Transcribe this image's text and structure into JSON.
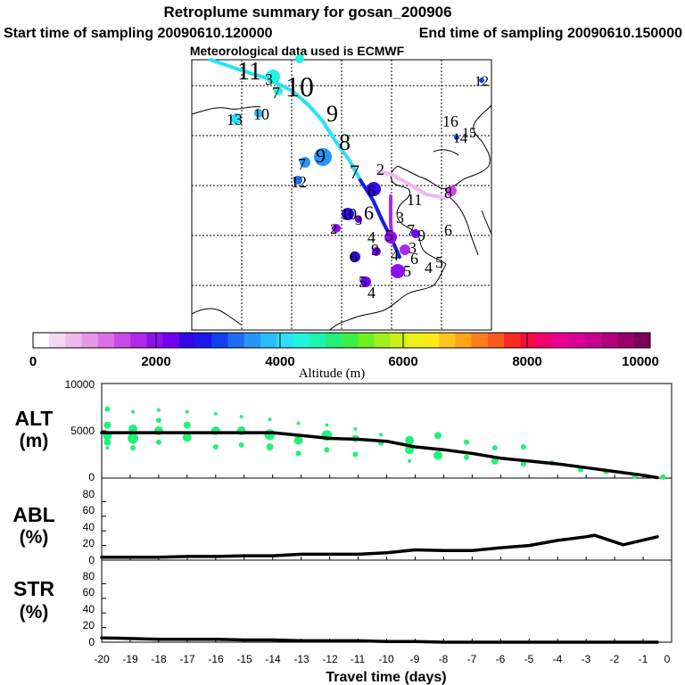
{
  "header": {
    "title": "Retroplume summary for gosan_200906",
    "start_time": "Start time of sampling 20090610.120000",
    "end_time": "End time of sampling 20090610.150000",
    "met_data": "Meteorological data used is ECMWF"
  },
  "colorbar": {
    "label": "Altitude (m)",
    "ticks": [
      "0",
      "2000",
      "4000",
      "6000",
      "8000",
      "10000"
    ],
    "colors": [
      "#ffffff",
      "#f5d6f5",
      "#f0b8f0",
      "#e896ea",
      "#dc6fe6",
      "#c84be8",
      "#ae2aea",
      "#8f10ec",
      "#7000f0",
      "#3008e8",
      "#1a18ec",
      "#1040ee",
      "#1f6cf2",
      "#2596f6",
      "#28bcf8",
      "#2ae0f8",
      "#20f4e0",
      "#1cf4b0",
      "#22f07a",
      "#3cf044",
      "#6cf020",
      "#9ef018",
      "#ccf018",
      "#eef018",
      "#fbe81a",
      "#fbc61c",
      "#fba41c",
      "#fb801c",
      "#fb5a1c",
      "#fb2a20",
      "#fa0a40",
      "#f00070",
      "#e80090",
      "#d80098",
      "#c80090",
      "#b0007e",
      "#98006c",
      "#7c0058"
    ]
  },
  "map": {
    "labels": [
      {
        "t": "11",
        "c": "#000000",
        "big": true
      },
      {
        "t": "3",
        "c": "#000000"
      },
      {
        "t": "7",
        "c": "#000000"
      },
      {
        "t": "10",
        "c": "#000000",
        "big": true
      },
      {
        "t": "13",
        "c": "#000000"
      },
      {
        "t": "10",
        "c": "#000000"
      },
      {
        "t": "9",
        "c": "#000000",
        "big": true
      },
      {
        "t": "8",
        "c": "#000000",
        "big": true
      },
      {
        "t": "7",
        "c": "#000000",
        "big": true
      },
      {
        "t": "9",
        "c": "#000000"
      },
      {
        "t": "7",
        "c": "#000000"
      },
      {
        "t": "12",
        "c": "#000000"
      },
      {
        "t": "16",
        "c": "#000000"
      },
      {
        "t": "14",
        "c": "#000000"
      },
      {
        "t": "15",
        "c": "#000000"
      },
      {
        "t": "12",
        "c": "#000000"
      },
      {
        "t": "2",
        "c": "#000000"
      },
      {
        "t": "6",
        "c": "#000000"
      },
      {
        "t": "11",
        "c": "#000000"
      },
      {
        "t": "8",
        "c": "#000000"
      },
      {
        "t": "6",
        "c": "#000000"
      },
      {
        "t": "10",
        "c": "#000000"
      },
      {
        "t": "3",
        "c": "#000000"
      },
      {
        "t": "3",
        "c": "#000000"
      },
      {
        "t": "2",
        "c": "#000000"
      },
      {
        "t": "9",
        "c": "#000000"
      },
      {
        "t": "7",
        "c": "#000000"
      },
      {
        "t": "6",
        "c": "#000000"
      },
      {
        "t": "5",
        "c": "#000000"
      },
      {
        "t": "4",
        "c": "#000000"
      },
      {
        "t": "3",
        "c": "#000000"
      },
      {
        "t": "6",
        "c": "#000000"
      },
      {
        "t": "4",
        "c": "#000000"
      },
      {
        "t": "5",
        "c": "#000000"
      },
      {
        "t": "4",
        "c": "#000000"
      },
      {
        "t": "5",
        "c": "#000000"
      },
      {
        "t": "6",
        "c": "#000000"
      },
      {
        "t": "5",
        "c": "#000000"
      },
      {
        "t": "4",
        "c": "#000000"
      },
      {
        "t": "9",
        "c": "#000000"
      }
    ]
  },
  "chart_data": [
    {
      "type": "scatter+line",
      "name": "ALT",
      "ylabel": "ALT",
      "yunit": "(m)",
      "ylim": [
        0,
        10000
      ],
      "yticks": [
        "10000",
        "5000",
        "0"
      ],
      "xlim": [
        -20,
        0
      ],
      "line": {
        "x": [
          -20,
          -19,
          -18,
          -17,
          -16,
          -15,
          -14,
          -13,
          -12,
          -11,
          -10,
          -9,
          -8,
          -7,
          -6,
          -5,
          -4,
          -3,
          -2,
          -1,
          -0.5
        ],
        "y": [
          4800,
          4800,
          4800,
          4800,
          4800,
          4800,
          4800,
          4500,
          4200,
          4100,
          3900,
          3300,
          3000,
          2600,
          2100,
          1800,
          1500,
          1100,
          700,
          300,
          50
        ]
      },
      "cluster_points": {
        "x": [
          -19.8,
          -19.8,
          -19.8,
          -19.8,
          -19.8,
          -18.9,
          -18.9,
          -18.9,
          -18.9,
          -18.0,
          -18.0,
          -18.0,
          -18.0,
          -17.0,
          -17.0,
          -17.0,
          -16.0,
          -16.0,
          -16.0,
          -15.1,
          -15.1,
          -15.1,
          -14.1,
          -14.1,
          -14.1,
          -13.1,
          -13.1,
          -13.1,
          -12.1,
          -12.1,
          -12.1,
          -11.1,
          -11.1,
          -11.1,
          -10.2,
          -10.2,
          -9.2,
          -9.2,
          -9.2,
          -8.2,
          -8.2,
          -7.2,
          -7.2,
          -6.2,
          -6.2,
          -5.2,
          -5.2,
          -4.2,
          -3.2,
          -2.3,
          -1.3,
          -0.3
        ],
        "y": [
          7300,
          5600,
          4500,
          3800,
          3200,
          7000,
          5200,
          4200,
          3200,
          7200,
          6100,
          5000,
          3800,
          7000,
          5600,
          4300,
          6800,
          5000,
          3300,
          6500,
          5000,
          3500,
          6200,
          4600,
          3300,
          5800,
          4000,
          2600,
          5600,
          4500,
          3000,
          5200,
          4200,
          2500,
          4600,
          3700,
          4000,
          3000,
          1800,
          4500,
          2400,
          3800,
          2200,
          3200,
          1800,
          3300,
          1500,
          1600,
          900,
          700,
          200,
          100
        ],
        "r": [
          3,
          4,
          5,
          4,
          2,
          2,
          5,
          6,
          3,
          2,
          3,
          5,
          3,
          2,
          4,
          5,
          2,
          5,
          3,
          2,
          5,
          3,
          2,
          6,
          4,
          2,
          5,
          3,
          2,
          6,
          3,
          2,
          4,
          3,
          2,
          3,
          5,
          5,
          2,
          4,
          5,
          3,
          3,
          3,
          4,
          3,
          3,
          3,
          3,
          3,
          3,
          3
        ]
      }
    },
    {
      "type": "line",
      "name": "ABL",
      "ylabel": "ABL",
      "yunit": "(%)",
      "ylim": [
        0,
        100
      ],
      "yticks": [
        "80",
        "60",
        "40",
        "20",
        "0"
      ],
      "xlim": [
        -20,
        0
      ],
      "x": [
        -20,
        -19,
        -18,
        -17,
        -16,
        -15,
        -14,
        -13,
        -12,
        -11,
        -10,
        -9,
        -8,
        -7,
        -6,
        -5,
        -4,
        -3,
        -2.7,
        -1.7,
        -0.5
      ],
      "y": [
        4,
        4,
        4,
        5,
        5,
        6,
        6,
        8,
        8,
        8,
        10,
        14,
        13,
        13,
        17,
        20,
        27,
        32,
        34,
        21,
        32
      ]
    },
    {
      "type": "line",
      "name": "STR",
      "ylabel": "STR",
      "yunit": "(%)",
      "ylim": [
        0,
        100
      ],
      "yticks": [
        "80",
        "60",
        "40",
        "20",
        "0"
      ],
      "xlim": [
        -20,
        0
      ],
      "xlabel": "Travel time (days)",
      "xticks": [
        "-20",
        "-19",
        "-18",
        "-17",
        "-16",
        "-15",
        "-14",
        "-13",
        "-12",
        "-11",
        "-10",
        "-9",
        "-8",
        "-7",
        "-6",
        "-5",
        "-4",
        "-3",
        "-2",
        "-1",
        "0"
      ],
      "x": [
        -20,
        -19,
        -18,
        -17,
        -16,
        -15,
        -14,
        -13,
        -12,
        -11,
        -10,
        -9,
        -8,
        -7,
        -6,
        -5,
        -4,
        -3,
        -2,
        -1,
        -0.5
      ],
      "y": [
        6,
        5,
        4,
        4,
        4,
        3,
        3,
        2,
        2,
        2,
        1,
        1,
        0,
        0,
        0,
        0,
        0,
        0,
        0,
        0,
        0
      ]
    }
  ]
}
